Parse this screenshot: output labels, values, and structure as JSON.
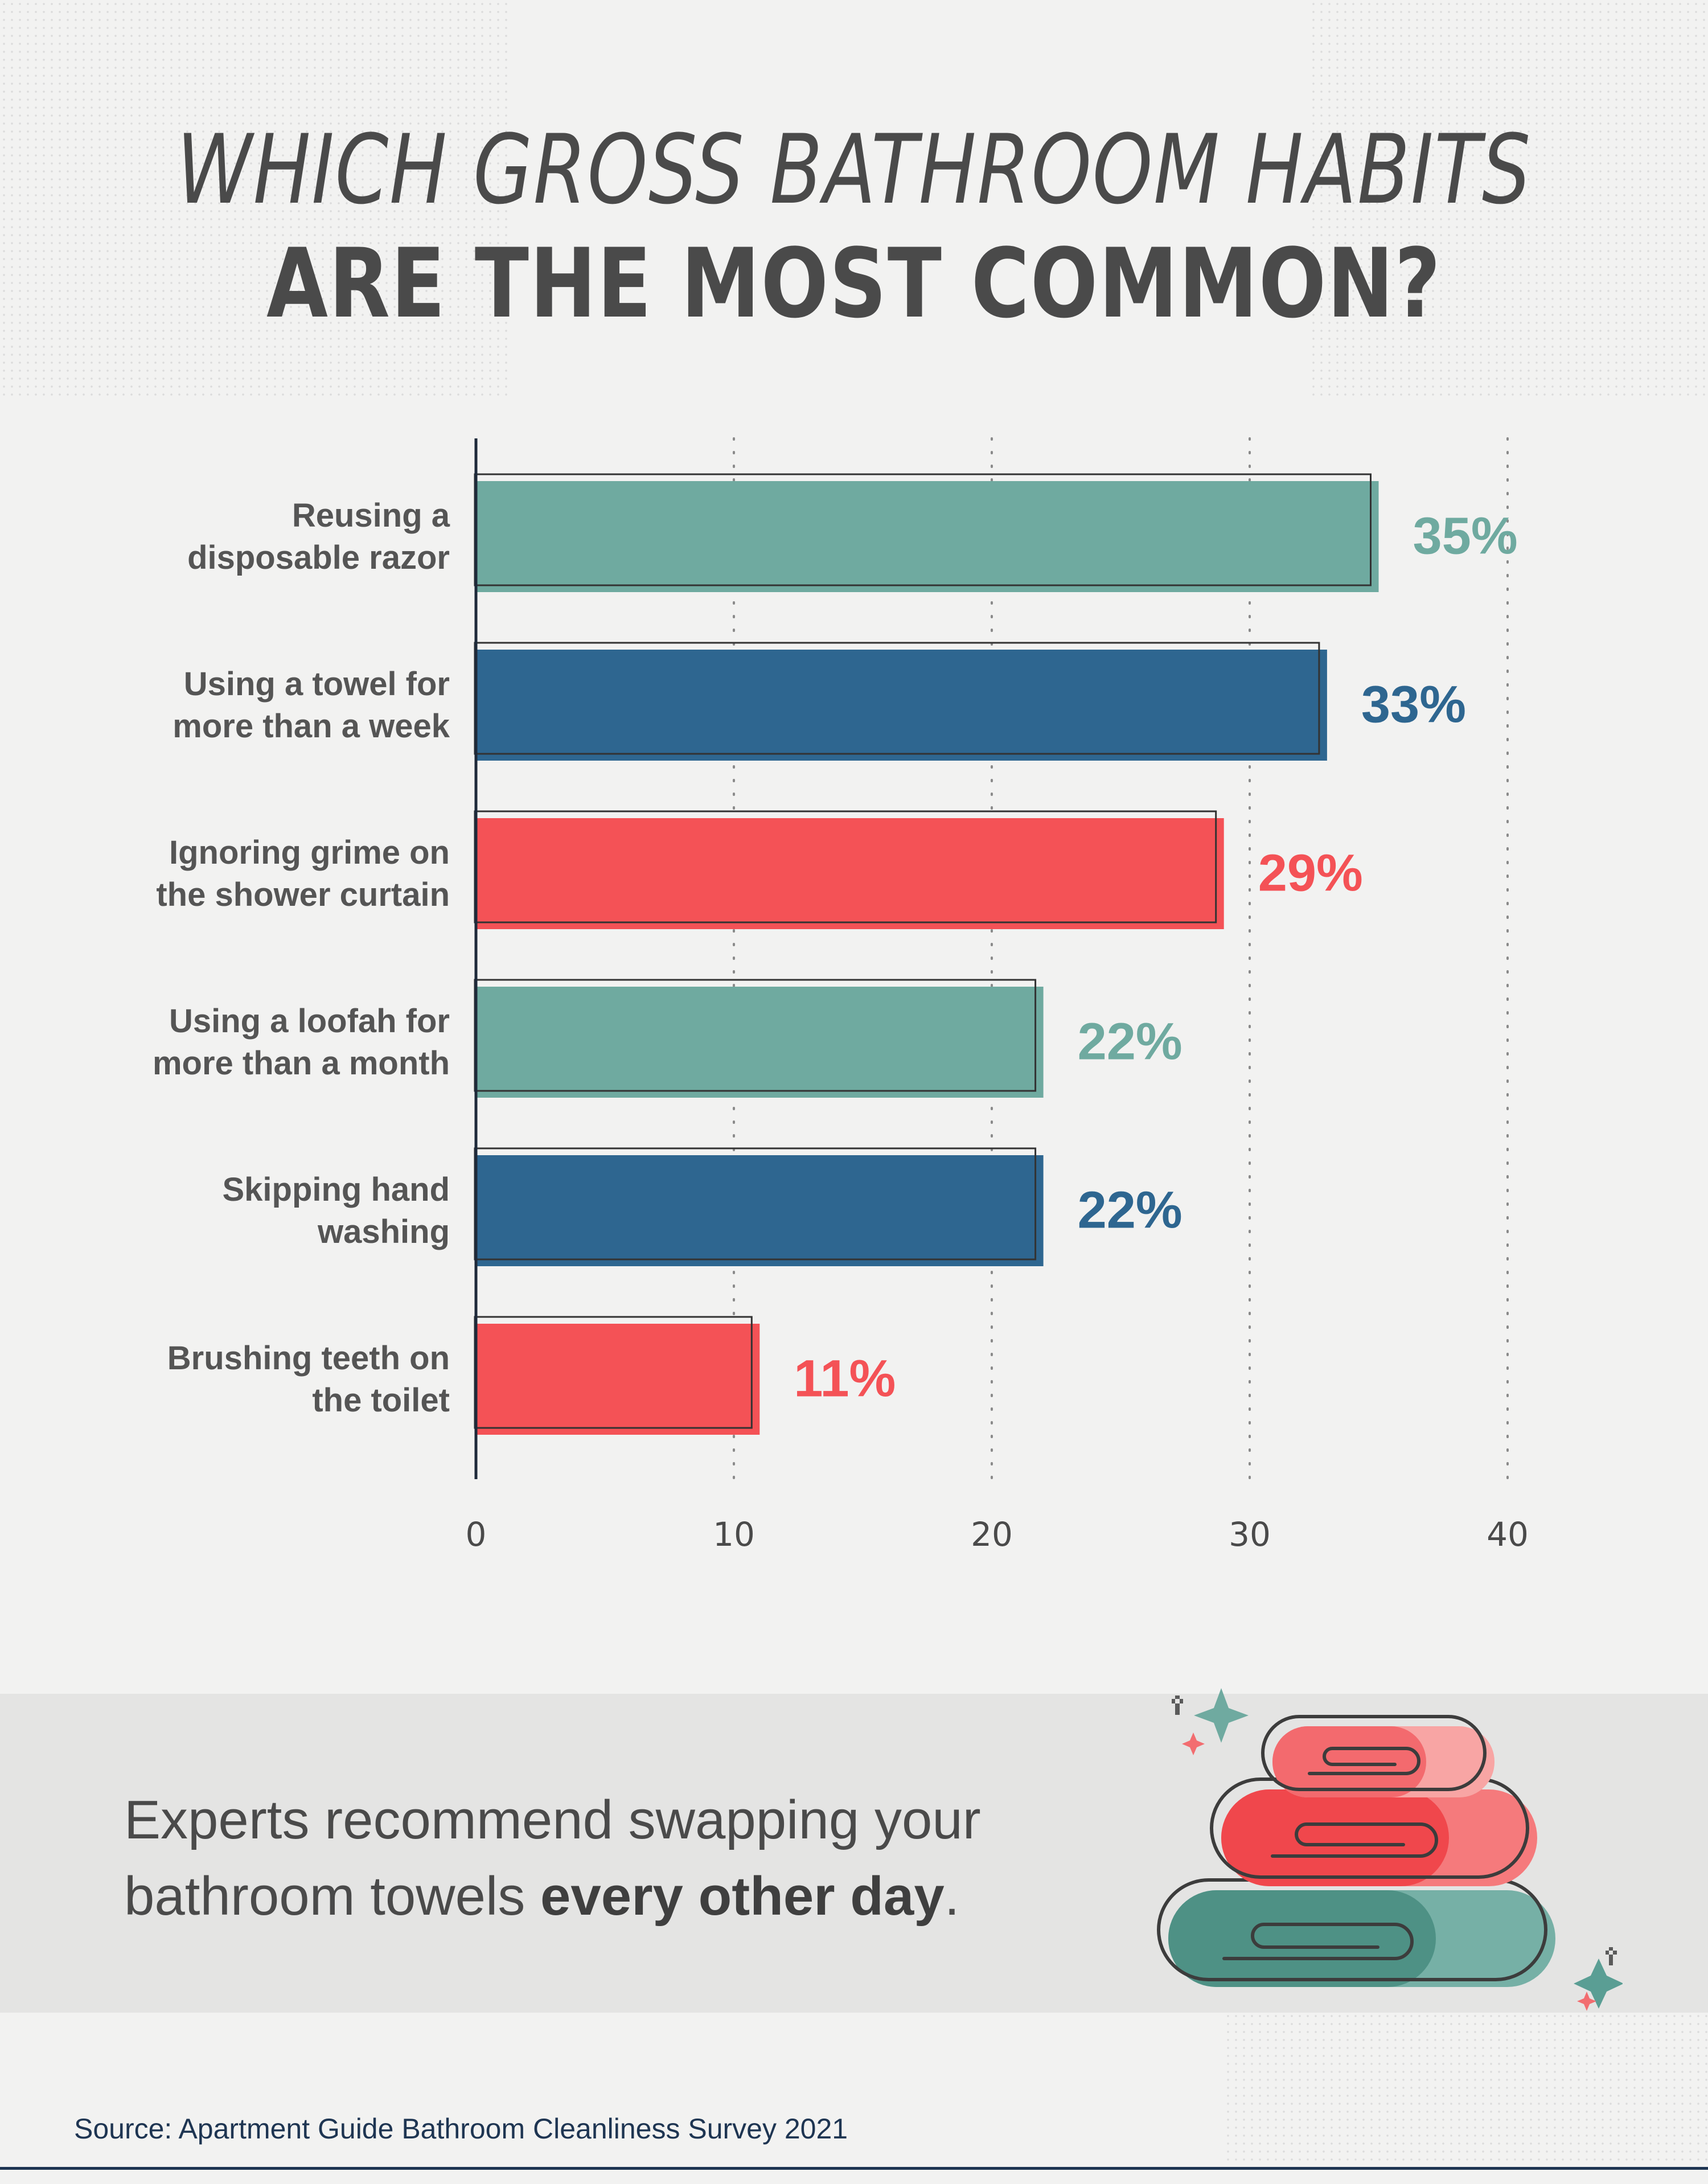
{
  "title": {
    "line1": "WHICH GROSS BATHROOM HABITS",
    "line2": "ARE THE MOST COMMON?"
  },
  "colors": {
    "teal": "#6faaa0",
    "blue": "#2e6690",
    "red": "#f45256",
    "text": "#4a4a4a",
    "navy": "#1e3552"
  },
  "chart_data": {
    "type": "bar",
    "orientation": "horizontal",
    "categories": [
      [
        "Reusing a",
        "disposable razor"
      ],
      [
        "Using a towel for",
        "more than a week"
      ],
      [
        "Ignoring grime on",
        "the shower curtain"
      ],
      [
        "Using a loofah for",
        "more than a month"
      ],
      [
        "Skipping hand",
        "washing"
      ],
      [
        "Brushing teeth on",
        "the toilet"
      ]
    ],
    "values": [
      35,
      33,
      29,
      22,
      22,
      11
    ],
    "data_labels": [
      "35%",
      "33%",
      "29%",
      "22%",
      "22%",
      "11%"
    ],
    "bar_colors": [
      "#6faaa0",
      "#2e6690",
      "#f45256",
      "#6faaa0",
      "#2e6690",
      "#f45256"
    ],
    "xlim": [
      0,
      40
    ],
    "xticks": [
      0,
      10,
      20,
      30,
      40
    ],
    "grid": "dotted vertical"
  },
  "tip": {
    "line1": "Experts recommend swapping your",
    "line2_normal": "bathroom towels ",
    "line2_bold": "every other day",
    "line2_end": "."
  },
  "illustration": {
    "icon": "towel-stack-icon"
  },
  "source": "Source: Apartment Guide Bathroom Cleanliness Survey 2021"
}
